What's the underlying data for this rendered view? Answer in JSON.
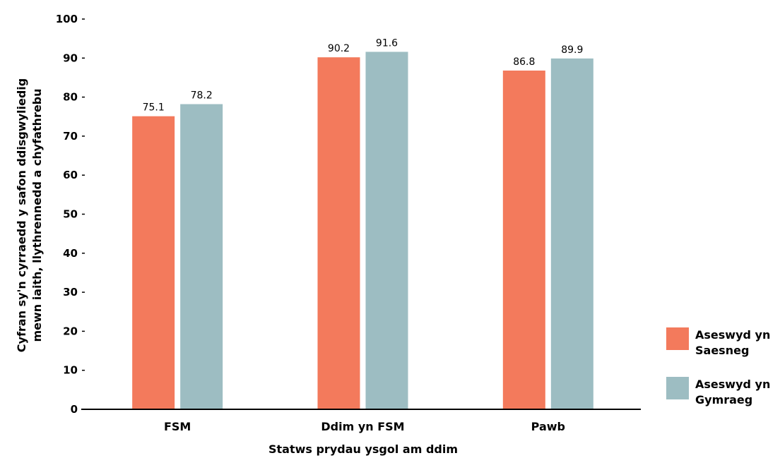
{
  "chart_data": {
    "type": "bar",
    "categories": [
      "FSM",
      "Ddim yn FSM",
      "Pawb"
    ],
    "series": [
      {
        "name": "Aseswyd yn Saesneg",
        "name_lines": [
          "Aseswyd yn",
          "Saesneg"
        ],
        "color": "#f37a5c",
        "values": [
          75.1,
          90.2,
          86.8
        ],
        "labels": [
          "75.1",
          "90.2",
          "86.8"
        ]
      },
      {
        "name": "Aseswyd yn Gymraeg",
        "name_lines": [
          "Aseswyd yn",
          "Gymraeg"
        ],
        "color": "#9dbdc2",
        "values": [
          78.2,
          91.6,
          89.9
        ],
        "labels": [
          "78.2",
          "91.6",
          "89.9"
        ]
      }
    ],
    "title": "",
    "xlabel": "Statws prydau ysgol am ddim",
    "ylabel": "Cyfran sy'n cyrraedd y safon ddisgwyliedig mewn iaith, llythrennedd a chyfathrebu",
    "ylabel_lines": [
      "Cyfran sy'n cyrraedd y safon ddisgwyliedig",
      "mewn iaith, llythrennedd a chyfathrebu"
    ],
    "ylim": [
      0,
      100
    ],
    "yticks": [
      0,
      10,
      20,
      30,
      40,
      50,
      60,
      70,
      80,
      90,
      100
    ],
    "grid": false,
    "legend_position": "bottom-right"
  }
}
